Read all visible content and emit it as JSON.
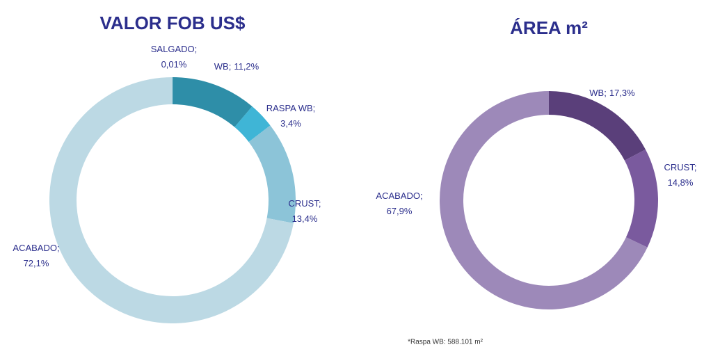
{
  "chart_data": [
    {
      "type": "donut",
      "title": "VALOR FOB US$",
      "categories": [
        "SALGADO;",
        "WB;",
        "RASPA WB;",
        "CRUST;",
        "ACABADO;"
      ],
      "values": [
        0.01,
        11.2,
        3.4,
        13.4,
        72.1
      ],
      "value_labels": [
        "0,01%",
        "11,2%",
        "3,4%",
        "13,4%",
        "72,1%"
      ],
      "colors": [
        "#2e8ea8",
        "#2e8ea8",
        "#3fb5d6",
        "#8cc4d8",
        "#bcd9e4"
      ]
    },
    {
      "type": "donut",
      "title": "ÁREA m²",
      "categories": [
        "WB;",
        "CRUST;",
        "ACABADO;"
      ],
      "values": [
        17.3,
        14.8,
        67.9
      ],
      "value_labels": [
        "17,3%",
        "14,8%",
        "67,9%"
      ],
      "colors": [
        "#5a3f7a",
        "#7a5a9e",
        "#9d89b9"
      ],
      "footnote": "*Raspa WB: 588.101 m²"
    }
  ]
}
